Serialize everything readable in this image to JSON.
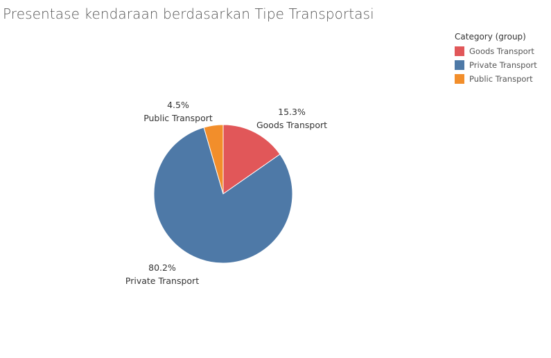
{
  "chart_data": {
    "type": "pie",
    "title": "Presentase kendaraan berdasarkan Tipe Transportasi",
    "legend": {
      "title": "Category (group)",
      "placement": "top-right"
    },
    "slices": [
      {
        "label": "Goods Transport",
        "percent": 15.3,
        "percent_label": "15.3%",
        "color": "#e15759"
      },
      {
        "label": "Private Transport",
        "percent": 80.2,
        "percent_label": "80.2%",
        "color": "#4e79a7"
      },
      {
        "label": "Public Transport",
        "percent": 4.5,
        "percent_label": "4.5%",
        "color": "#f28e2b"
      }
    ]
  }
}
